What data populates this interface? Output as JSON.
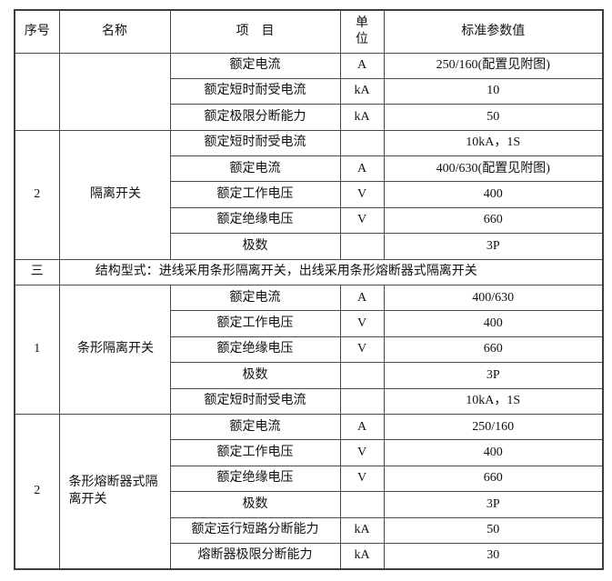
{
  "table": {
    "columns": [
      "序号",
      "名称",
      "项　目",
      "单\n位",
      "标准参数值"
    ],
    "sections": [
      {
        "no": "",
        "name": "",
        "rows": [
          {
            "item": "额定电流",
            "unit": "A",
            "value": "250/160(配置见附图)"
          },
          {
            "item": "额定短时耐受电流",
            "unit": "kA",
            "value": "10"
          },
          {
            "item": "额定极限分断能力",
            "unit": "kA",
            "value": "50"
          }
        ]
      },
      {
        "no": "2",
        "name": "隔离开关",
        "rows": [
          {
            "item": "额定短时耐受电流",
            "unit": "",
            "value": "10kA，1S"
          },
          {
            "item": "额定电流",
            "unit": "A",
            "value": "400/630(配置见附图)"
          },
          {
            "item": "额定工作电压",
            "unit": "V",
            "value": "400"
          },
          {
            "item": "额定绝缘电压",
            "unit": "V",
            "value": "660"
          },
          {
            "item": "极数",
            "unit": "",
            "value": "3P"
          }
        ]
      },
      {
        "divider": true,
        "no": "三",
        "text": "结构型式：进线采用条形隔离开关，出线采用条形熔断器式隔离开关"
      },
      {
        "no": "1",
        "name": "条形隔离开关",
        "rows": [
          {
            "item": "额定电流",
            "unit": "A",
            "value": "400/630"
          },
          {
            "item": "额定工作电压",
            "unit": "V",
            "value": "400"
          },
          {
            "item": "额定绝缘电压",
            "unit": "V",
            "value": "660"
          },
          {
            "item": "极数",
            "unit": "",
            "value": "3P"
          },
          {
            "item": "额定短时耐受电流",
            "unit": "",
            "value": "10kA，1S"
          }
        ]
      },
      {
        "no": "2",
        "name": "条形熔断器式隔离开关",
        "rows": [
          {
            "item": "额定电流",
            "unit": "A",
            "value": "250/160"
          },
          {
            "item": "额定工作电压",
            "unit": "V",
            "value": "400"
          },
          {
            "item": "额定绝缘电压",
            "unit": "V",
            "value": "660"
          },
          {
            "item": "极数",
            "unit": "",
            "value": "3P"
          },
          {
            "item": "额定运行短路分断能力",
            "unit": "kA",
            "value": "50"
          },
          {
            "item": "熔断器极限分断能力",
            "unit": "kA",
            "value": "30"
          }
        ]
      }
    ]
  }
}
